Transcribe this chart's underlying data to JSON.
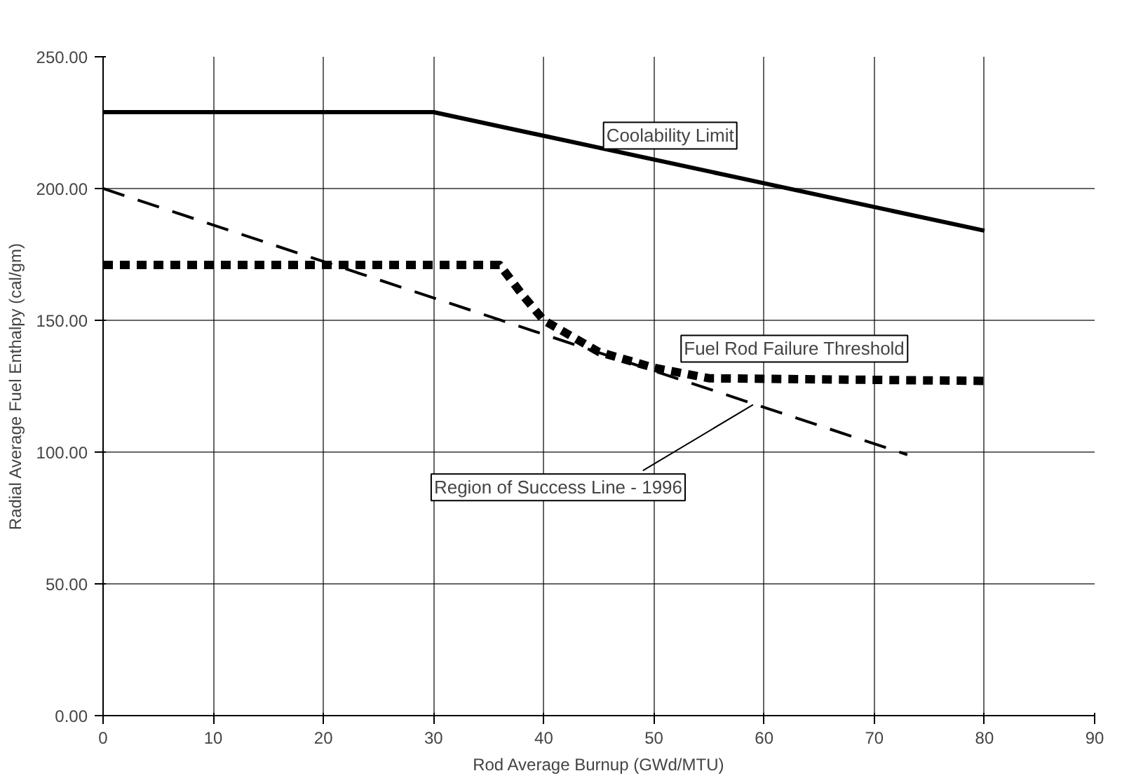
{
  "chart_data": {
    "type": "line",
    "xlabel": "Rod Average Burnup (GWd/MTU)",
    "ylabel": "Radial Average Fuel Enthalpy (cal/gm)",
    "series": [
      {
        "color": "#000000",
        "line_style": "solid",
        "x": [
          0,
          30,
          80
        ],
        "values": [
          229,
          229,
          184
        ]
      },
      {
        "color": "#000000",
        "line_style": "dotted",
        "x": [
          0,
          36,
          38,
          40,
          45,
          50,
          55,
          80
        ],
        "values": [
          171,
          171,
          160,
          150,
          138,
          132,
          128,
          127
        ]
      },
      {
        "color": "#000000",
        "line_style": "dashed",
        "x": [
          0,
          73
        ],
        "values": [
          200,
          99
        ]
      }
    ],
    "annotations": [
      {
        "text": "Coolability Limit",
        "x": 60,
        "y": 202
      },
      {
        "text": "Fuel Rod Failure Threshold",
        "x": 70,
        "y": 127
      },
      {
        "text": "Region of Success Line - 1996",
        "x": 59,
        "y": 118
      }
    ],
    "xlim": [
      0,
      90
    ],
    "ylim": [
      0,
      250
    ],
    "xticks": [
      0,
      10,
      20,
      30,
      40,
      50,
      60,
      70,
      80,
      90
    ],
    "yticks": [
      {
        "value": 0,
        "label": "0.00"
      },
      {
        "value": 50,
        "label": "50.00"
      },
      {
        "value": 100,
        "label": "100.00"
      },
      {
        "value": 150,
        "label": "150.00"
      },
      {
        "value": 200,
        "label": "200.00"
      },
      {
        "value": 250,
        "label": "250.00"
      }
    ],
    "grid": true,
    "marker": "none"
  }
}
